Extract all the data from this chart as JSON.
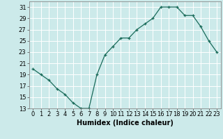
{
  "x": [
    0,
    1,
    2,
    3,
    4,
    5,
    6,
    7,
    8,
    9,
    10,
    11,
    12,
    13,
    14,
    15,
    16,
    17,
    18,
    19,
    20,
    21,
    22,
    23
  ],
  "y": [
    20,
    19,
    18,
    16.5,
    15.5,
    14,
    13,
    13,
    19,
    22.5,
    24,
    25.5,
    25.5,
    27,
    28,
    29,
    31,
    31,
    31,
    29.5,
    29.5,
    27.5,
    25,
    23
  ],
  "line_color": "#1a6b5a",
  "marker": "+",
  "bg_color": "#cceaea",
  "grid_color": "#ffffff",
  "xlabel": "Humidex (Indice chaleur)",
  "ylim": [
    13,
    32
  ],
  "xlim": [
    -0.5,
    23.5
  ],
  "yticks": [
    13,
    15,
    17,
    19,
    21,
    23,
    25,
    27,
    29,
    31
  ],
  "xtick_labels": [
    "0",
    "1",
    "2",
    "3",
    "4",
    "5",
    "6",
    "7",
    "8",
    "9",
    "10",
    "11",
    "12",
    "13",
    "14",
    "15",
    "16",
    "17",
    "18",
    "19",
    "20",
    "21",
    "22",
    "23"
  ],
  "ylabel_fontsize": 6,
  "xlabel_fontsize": 7,
  "tick_labelsize": 6
}
